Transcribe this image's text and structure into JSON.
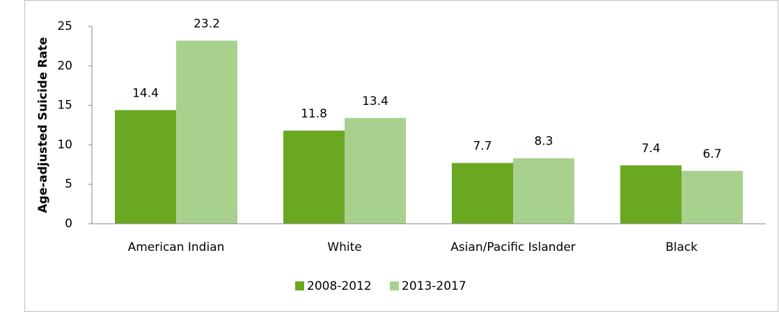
{
  "chart_data": {
    "type": "bar",
    "y_label": "Age-adjusted Suicide Rate",
    "categories": [
      "American Indian",
      "White",
      "Asian/Pacific Islander",
      "Black"
    ],
    "series": [
      {
        "name": "2008-2012",
        "color": "#6aa822",
        "values": [
          14.4,
          11.8,
          7.7,
          7.4
        ]
      },
      {
        "name": "2013-2017",
        "color": "#a9d18e",
        "values": [
          23.2,
          13.4,
          8.3,
          6.7
        ]
      }
    ],
    "ylim": [
      0,
      25
    ],
    "yticks": [
      0,
      5,
      10,
      15,
      20,
      25
    ],
    "grid": false,
    "legend": "bottom"
  }
}
